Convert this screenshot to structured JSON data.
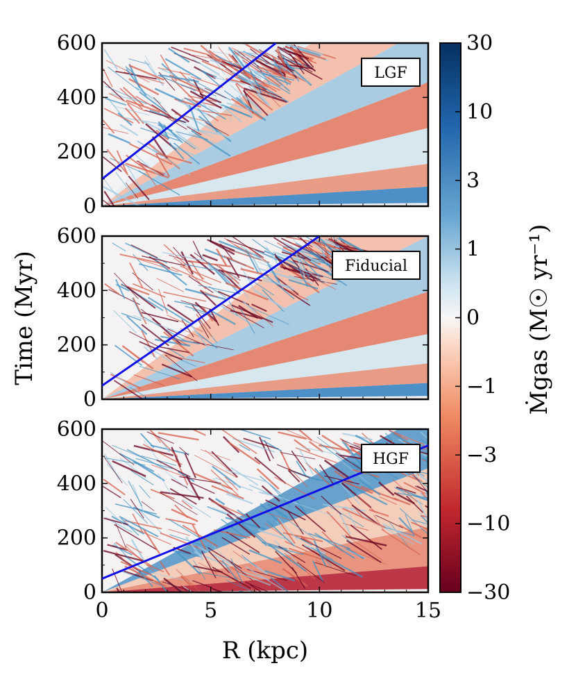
{
  "chart_data": {
    "type": "heatmap",
    "ylabel": "Time  (Myr)",
    "xlabel": "R  (kpc)",
    "xlim": [
      0,
      15
    ],
    "ylim": [
      0,
      600
    ],
    "x_ticks": [
      "0",
      "5",
      "10",
      "15"
    ],
    "y_ticks": [
      "0",
      "200",
      "400",
      "600"
    ],
    "colorbar": {
      "label": "Ṁgas  (M☉ yr⁻¹)",
      "scale": "symlog",
      "colormap": "RdBu (red = negative, blue = positive)",
      "ticks": [
        "30",
        "10",
        "3",
        "1",
        "0",
        "−1",
        "−3",
        "−10",
        "−30"
      ],
      "range": [
        -30,
        30
      ]
    },
    "panels": [
      {
        "label": "LGF",
        "line": {
          "x": [
            0,
            8
          ],
          "y": [
            100,
            600
          ]
        }
      },
      {
        "label": "Fiducial",
        "line": {
          "x": [
            0,
            10
          ],
          "y": [
            50,
            600
          ]
        }
      },
      {
        "label": "HGF",
        "line": {
          "x": [
            0,
            15
          ],
          "y": [
            50,
            540
          ]
        }
      }
    ]
  },
  "colors": {
    "line": "#1010e8",
    "red_dark": "#67001f",
    "red": "#d6604d",
    "white": "#f7f7f7",
    "blue": "#4393c3",
    "blue_dark": "#053061"
  }
}
